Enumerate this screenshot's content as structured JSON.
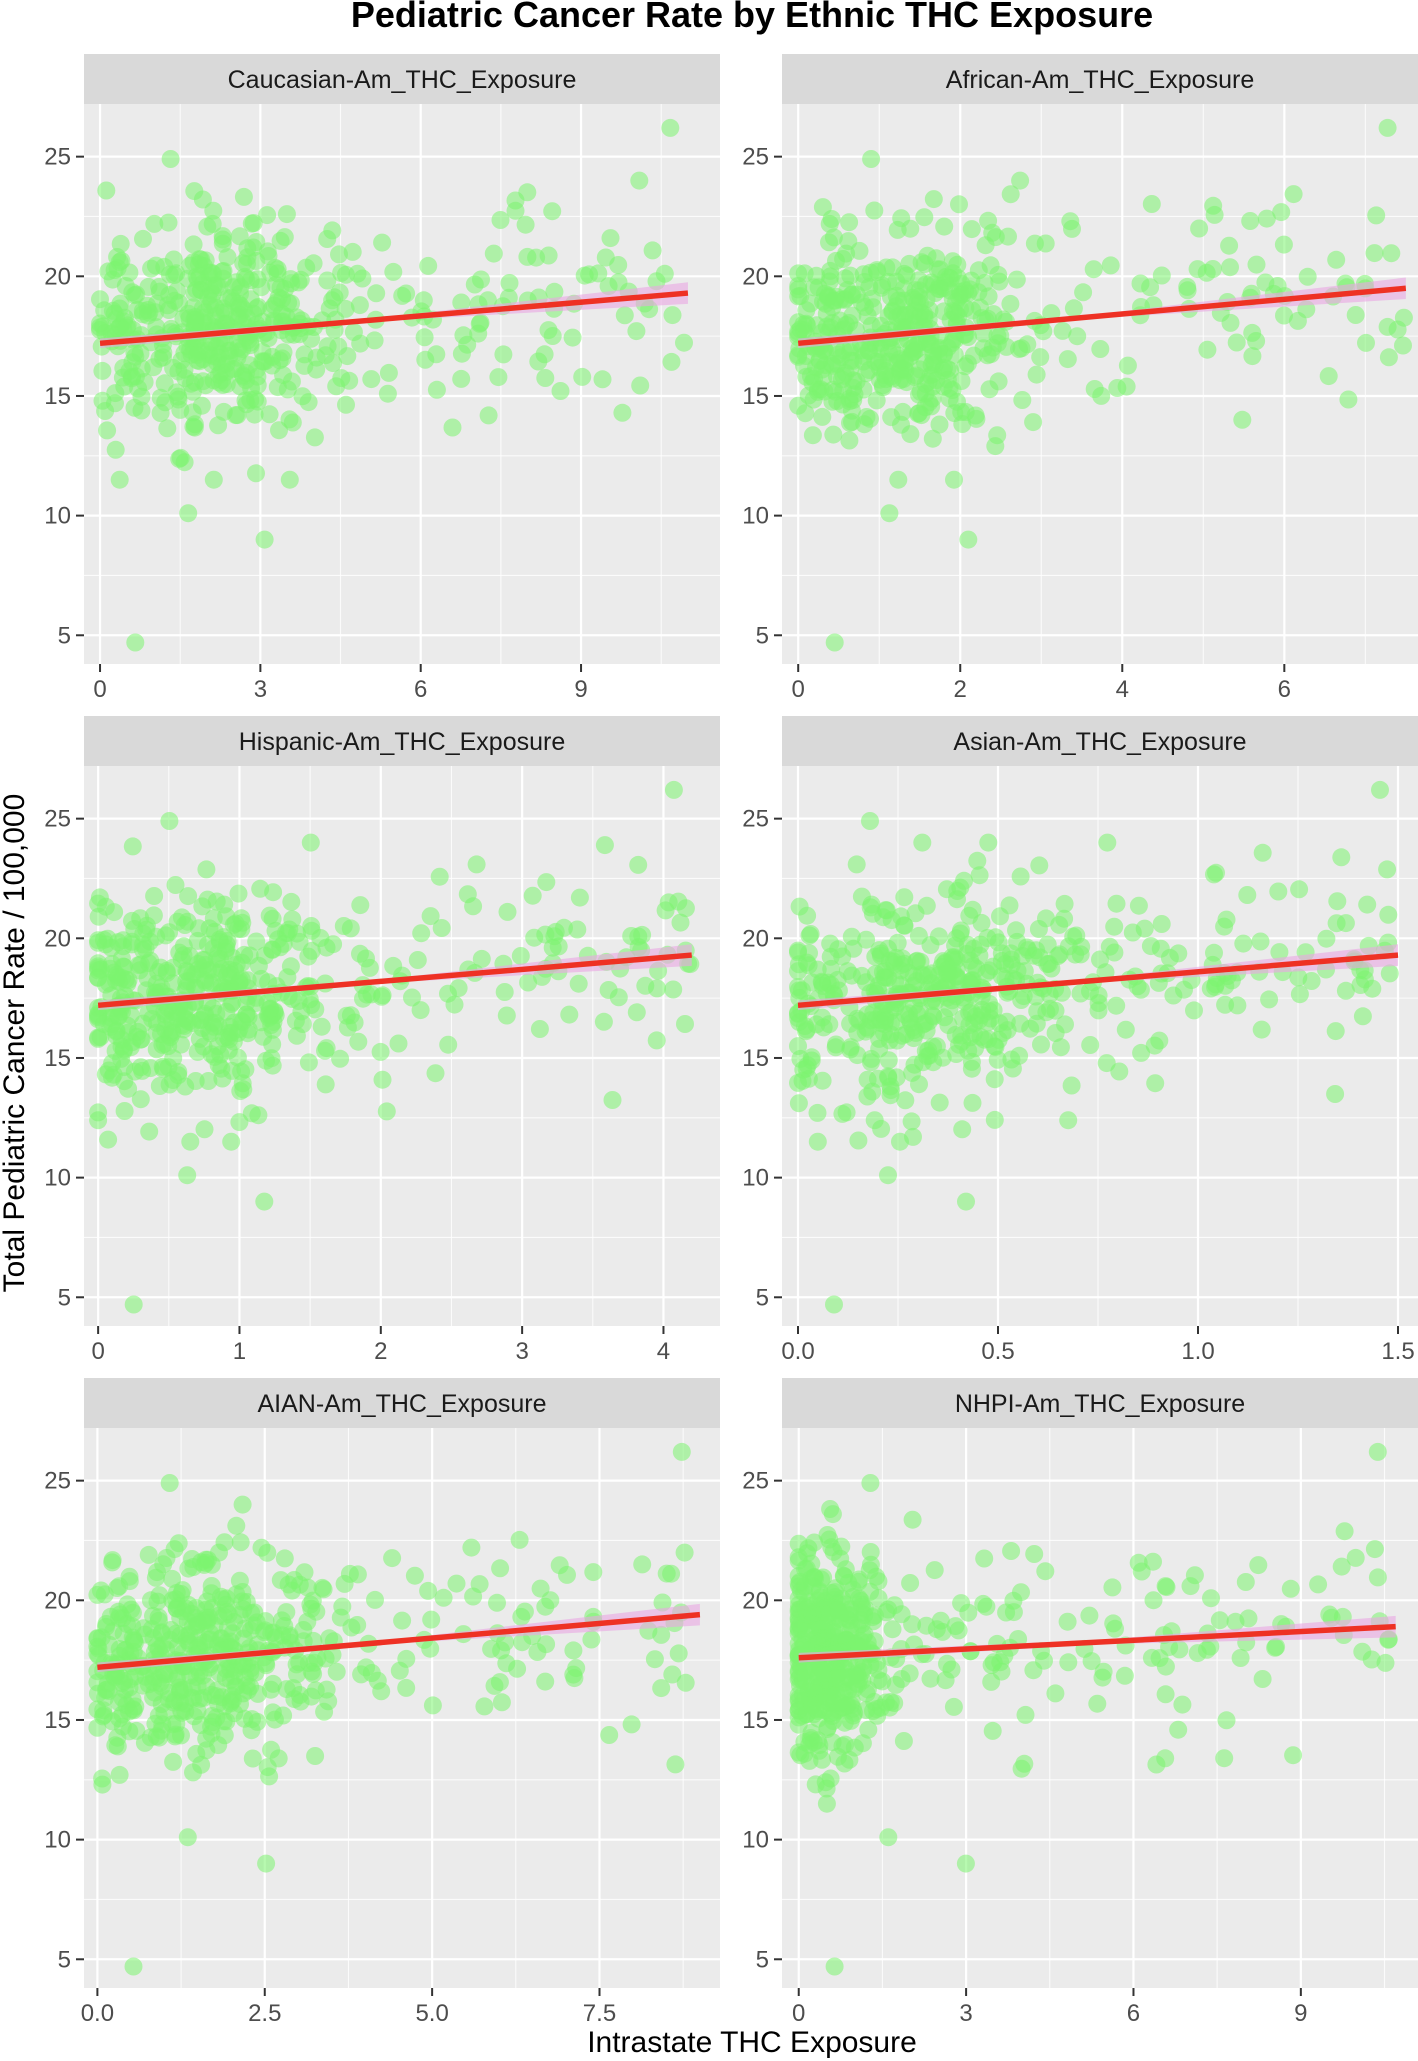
{
  "title": "Pediatric Cancer Rate by Ethnic THC Exposure",
  "xlabel": "Intrastate THC Exposure",
  "ylabel": "Total Pediatric Cancer Rate / 100,000",
  "colors": {
    "points": "#7cf46f",
    "fit_line": "#ee3124",
    "ci_band": "#e9a6e2",
    "panel": "#ebebeb",
    "strip": "#d9d9d9"
  },
  "chart_data": [
    {
      "type": "scatter",
      "title": "Caucasian-Am_THC_Exposure",
      "xlim": [
        -0.3,
        11.6
      ],
      "ylim": [
        3.8,
        27.2
      ],
      "xticks": [
        0,
        3,
        6,
        9
      ],
      "xtick_labels": [
        "0",
        "3",
        "6",
        "9"
      ],
      "yticks": [
        5,
        10,
        15,
        20,
        25
      ],
      "ytick_labels": [
        "5",
        "10",
        "15",
        "20",
        "25"
      ],
      "x_max": 11.0,
      "cluster_x": 2.3,
      "spread": 1.8,
      "fit": {
        "x": [
          0,
          11.0
        ],
        "y": [
          17.2,
          19.3
        ],
        "ci_halfwidth_end": 0.45
      }
    },
    {
      "type": "scatter",
      "title": "African-Am_THC_Exposure",
      "xlim": [
        -0.2,
        7.65
      ],
      "ylim": [
        3.8,
        27.2
      ],
      "xticks": [
        0,
        2,
        4,
        6
      ],
      "xtick_labels": [
        "0",
        "2",
        "4",
        "6"
      ],
      "yticks": [
        5,
        10,
        15,
        20,
        25
      ],
      "ytick_labels": [
        "5",
        "10",
        "15",
        "20",
        "25"
      ],
      "x_max": 7.5,
      "cluster_x": 1.3,
      "spread": 1.3,
      "fit": {
        "x": [
          0,
          7.5
        ],
        "y": [
          17.2,
          19.5
        ],
        "ci_halfwidth_end": 0.45
      }
    },
    {
      "type": "scatter",
      "title": "Hispanic-Am_THC_Exposure",
      "xlim": [
        -0.1,
        4.4
      ],
      "ylim": [
        3.8,
        27.2
      ],
      "xticks": [
        0,
        1,
        2,
        3,
        4
      ],
      "xtick_labels": [
        "0",
        "1",
        "2",
        "3",
        "4"
      ],
      "yticks": [
        5,
        10,
        15,
        20,
        25
      ],
      "ytick_labels": [
        "5",
        "10",
        "15",
        "20",
        "25"
      ],
      "x_max": 4.2,
      "cluster_x": 0.7,
      "spread": 0.8,
      "fit": {
        "x": [
          0,
          4.2
        ],
        "y": [
          17.2,
          19.3
        ],
        "ci_halfwidth_end": 0.45
      }
    },
    {
      "type": "scatter",
      "title": "Asian-Am_THC_Exposure",
      "xlim": [
        -0.04,
        1.55
      ],
      "ylim": [
        3.8,
        27.2
      ],
      "xticks": [
        0,
        0.5,
        1,
        1.5
      ],
      "xtick_labels": [
        "0.0",
        "0.5",
        "1.0",
        "1.5"
      ],
      "yticks": [
        5,
        10,
        15,
        20,
        25
      ],
      "ytick_labels": [
        "5",
        "10",
        "15",
        "20",
        "25"
      ],
      "x_max": 1.5,
      "cluster_x": 0.35,
      "spread": 0.3,
      "fit": {
        "x": [
          0,
          1.5
        ],
        "y": [
          17.2,
          19.3
        ],
        "ci_halfwidth_end": 0.45
      }
    },
    {
      "type": "scatter",
      "title": "AIAN-Am_THC_Exposure",
      "xlim": [
        -0.2,
        9.3
      ],
      "ylim": [
        3.8,
        27.2
      ],
      "xticks": [
        0,
        2.5,
        5,
        7.5
      ],
      "xtick_labels": [
        "0.0",
        "2.5",
        "5.0",
        "7.5"
      ],
      "yticks": [
        5,
        10,
        15,
        20,
        25
      ],
      "ytick_labels": [
        "5",
        "10",
        "15",
        "20",
        "25"
      ],
      "x_max": 9.0,
      "cluster_x": 1.6,
      "spread": 1.5,
      "fit": {
        "x": [
          0,
          9.0
        ],
        "y": [
          17.2,
          19.4
        ],
        "ci_halfwidth_end": 0.45
      }
    },
    {
      "type": "scatter",
      "title": "NHPI-Am_THC_Exposure",
      "xlim": [
        -0.3,
        11.1
      ],
      "ylim": [
        3.8,
        27.2
      ],
      "xticks": [
        0,
        3,
        6,
        9
      ],
      "xtick_labels": [
        "0",
        "3",
        "6",
        "9"
      ],
      "yticks": [
        5,
        10,
        15,
        20,
        25
      ],
      "ytick_labels": [
        "5",
        "10",
        "15",
        "20",
        "25"
      ],
      "x_max": 10.7,
      "cluster_x": 0.6,
      "spread": 0.9,
      "fit": {
        "x": [
          0,
          10.7
        ],
        "y": [
          17.6,
          18.9
        ],
        "ci_halfwidth_end": 0.45
      }
    }
  ]
}
